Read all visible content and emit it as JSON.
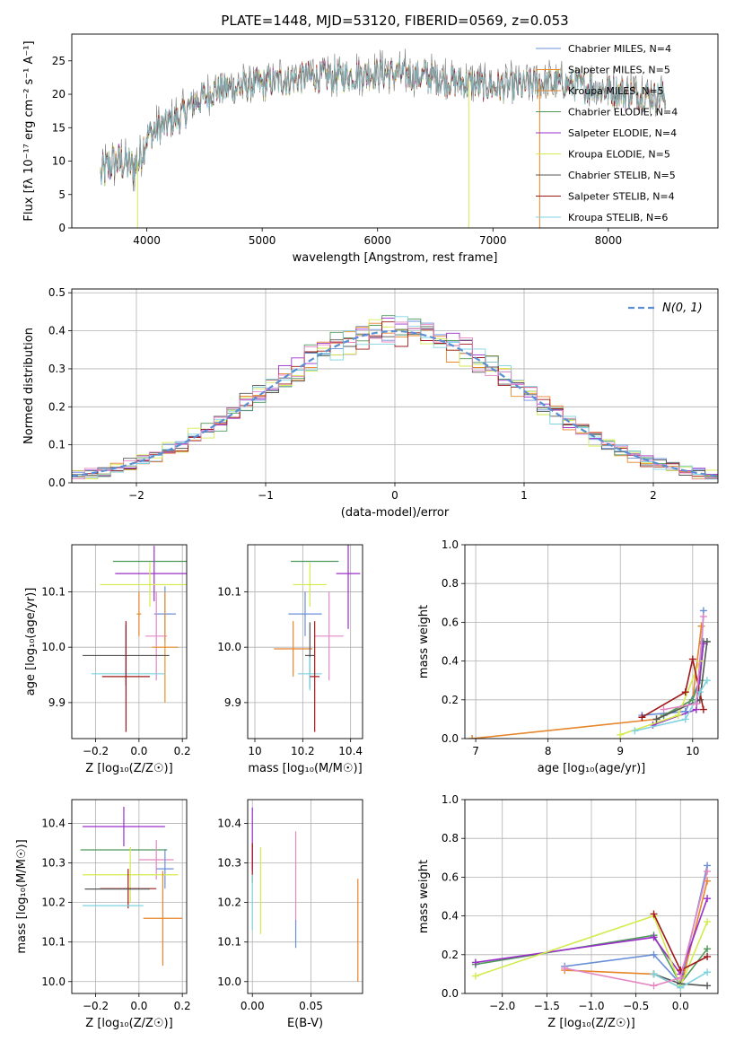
{
  "figure": {
    "title": "PLATE=1448, MJD=53120, FIBERID=0569, z=0.053",
    "palette": [
      "#6a8fd8",
      "#e8902e",
      "#e6852a",
      "#4f9a5a",
      "#9a2fc9",
      "#d4ea4e",
      "#555555",
      "#a01818",
      "#7fd3e0",
      "#e488c4"
    ]
  },
  "chart_data": [
    {
      "id": "spectrum",
      "type": "line",
      "xlabel": "wavelength [Angstrom, rest frame]",
      "ylabel": "Flux [fλ 10⁻¹⁷ erg cm⁻² s⁻¹ A⁻¹]",
      "xlim": [
        3350,
        8950
      ],
      "ylim": [
        0,
        29
      ],
      "xticks": [
        4000,
        5000,
        6000,
        7000,
        8000
      ],
      "yticks": [
        0,
        5,
        10,
        15,
        20,
        25
      ],
      "grid": false,
      "legend_position": "top-right",
      "continuum": {
        "x": [
          3600,
          3700,
          3800,
          3900,
          4000,
          4100,
          4200,
          4300,
          4400,
          4500,
          4600,
          4800,
          5000,
          5200,
          5400,
          5600,
          5800,
          6000,
          6200,
          6400,
          6600,
          6800,
          7000,
          7200,
          7400,
          7600,
          7800,
          8000,
          8200,
          8400,
          8500
        ],
        "y": [
          8,
          10,
          10,
          9,
          14,
          15,
          16,
          17,
          19,
          20,
          21,
          21.5,
          22,
          22.5,
          23,
          23,
          23.3,
          23.5,
          23.5,
          23,
          22.5,
          22,
          21.5,
          21.5,
          22,
          22,
          21.5,
          21,
          20.5,
          20,
          20
        ]
      },
      "series": [
        {
          "name": "Chabrier MILES, N_SSP=4",
          "color": "#6a8fd8"
        },
        {
          "name": "Salpeter MILES, N_SSP=5",
          "color": "#e8902e"
        },
        {
          "name": "Kroupa MILES, N_SSP=5",
          "color": "#e6852a"
        },
        {
          "name": "Chabrier ELODIE, N_SSP=4",
          "color": "#4f9a5a"
        },
        {
          "name": "Salpeter ELODIE, N_SSP=4",
          "color": "#9a2fc9"
        },
        {
          "name": "Kroupa ELODIE, N_SSP=5",
          "color": "#d4ea4e"
        },
        {
          "name": "Chabrier STELIB, N_SSP=5",
          "color": "#555555"
        },
        {
          "name": "Salpeter STELIB, N_SSP=4",
          "color": "#a01818"
        },
        {
          "name": "Kroupa STELIB, N_SSP=6",
          "color": "#7fd3e0"
        }
      ]
    },
    {
      "id": "residuals",
      "type": "bar",
      "xlabel": "(data-model)/error",
      "ylabel": "Normed distribution",
      "xlim": [
        -2.5,
        2.5
      ],
      "ylim": [
        0,
        0.51
      ],
      "xticks": [
        -2,
        -1,
        0,
        1,
        2
      ],
      "yticks": [
        0.0,
        0.1,
        0.2,
        0.3,
        0.4,
        0.5
      ],
      "grid": true,
      "legend_position": "top-right",
      "gaussian_label": "N(0, 1)",
      "bin_width": 0.1,
      "bin_start": -2.5
    },
    {
      "id": "age-vs-z",
      "type": "scatter",
      "xlabel": "Z [log₁₀(Z/Z☉)]",
      "ylabel": "age  [log₁₀(age/yr)]",
      "xlim": [
        -0.31,
        0.22
      ],
      "ylim": [
        9.835,
        10.185
      ],
      "xticks": [
        -0.2,
        0.0,
        0.2
      ],
      "xticklabels": [
        "−0.2",
        "0.0",
        "0.2"
      ],
      "yticks": [
        9.9,
        10.0,
        10.1
      ],
      "grid": true,
      "errorbars": [
        {
          "x": 0.07,
          "y": 10.155,
          "xerr": 0.19,
          "yerr": 0.0,
          "color": "#4f9a5a"
        },
        {
          "x": 0.07,
          "y": 10.133,
          "xerr": 0.18,
          "yerr": 0.05,
          "color": "#9a2fc9"
        },
        {
          "x": 0.05,
          "y": 10.113,
          "xerr": 0.23,
          "yerr": 0.04,
          "color": "#d4ea4e"
        },
        {
          "x": 0.0,
          "y": 10.06,
          "xerr": 0.01,
          "yerr": 0.04,
          "color": "#e6852a"
        },
        {
          "x": 0.12,
          "y": 10.06,
          "xerr": 0.05,
          "yerr": 0.05,
          "color": "#6a8fd8"
        },
        {
          "x": 0.08,
          "y": 10.02,
          "xerr": 0.05,
          "yerr": 0.08,
          "color": "#e488c4"
        },
        {
          "x": 0.12,
          "y": 10.0,
          "xerr": 0.06,
          "yerr": 0.1,
          "color": "#e8902e"
        },
        {
          "x": -0.06,
          "y": 9.985,
          "xerr": 0.2,
          "yerr": 0.055,
          "color": "#555555"
        },
        {
          "x": -0.05,
          "y": 9.952,
          "xerr": 0.17,
          "yerr": 0.0,
          "color": "#7fd3e0"
        },
        {
          "x": -0.06,
          "y": 9.947,
          "xerr": 0.11,
          "yerr": 0.1,
          "color": "#a01818"
        }
      ]
    },
    {
      "id": "age-vs-mass",
      "type": "scatter",
      "xlabel": "mass [log₁₀(M/M☉)]",
      "ylabel": "",
      "xlim": [
        9.97,
        10.45
      ],
      "ylim": [
        9.835,
        10.185
      ],
      "xticks": [
        10.0,
        10.2,
        10.4
      ],
      "yticks": [
        9.9,
        10.0,
        10.1
      ],
      "grid": true,
      "errorbars": [
        {
          "x": 10.25,
          "y": 10.155,
          "xerr": 0.1,
          "yerr": 0.0,
          "color": "#4f9a5a"
        },
        {
          "x": 10.39,
          "y": 10.133,
          "xerr": 0.05,
          "yerr": 0.1,
          "color": "#9a2fc9"
        },
        {
          "x": 10.23,
          "y": 10.113,
          "xerr": 0.07,
          "yerr": 0.04,
          "color": "#d4ea4e"
        },
        {
          "x": 10.21,
          "y": 10.06,
          "xerr": 0.07,
          "yerr": 0.04,
          "color": "#6a8fd8"
        },
        {
          "x": 10.31,
          "y": 10.02,
          "xerr": 0.06,
          "yerr": 0.08,
          "color": "#e488c4"
        },
        {
          "x": 10.16,
          "y": 9.997,
          "xerr": 0.08,
          "yerr": 0.05,
          "color": "#e6852a"
        },
        {
          "x": 10.23,
          "y": 9.985,
          "xerr": 0.02,
          "yerr": 0.06,
          "color": "#555555"
        },
        {
          "x": 10.23,
          "y": 9.952,
          "xerr": 0.05,
          "yerr": 0.03,
          "color": "#7fd3e0"
        },
        {
          "x": 10.25,
          "y": 9.947,
          "xerr": 0.02,
          "yerr": 0.1,
          "color": "#a01818"
        }
      ]
    },
    {
      "id": "mass-weight-vs-age",
      "type": "line",
      "xlabel": "age  [log₁₀(age/yr)]",
      "ylabel": "mass weight",
      "xlim": [
        6.85,
        10.35
      ],
      "ylim": [
        0,
        1.0
      ],
      "xticks": [
        7,
        8,
        9,
        10
      ],
      "yticks": [
        0.0,
        0.2,
        0.4,
        0.6,
        0.8,
        1.0
      ],
      "grid": true,
      "series": [
        {
          "color": "#6a8fd8",
          "points": [
            [
              9.3,
              0.12
            ],
            [
              9.9,
              0.14
            ],
            [
              10.1,
              0.3
            ],
            [
              10.15,
              0.66
            ]
          ]
        },
        {
          "color": "#e6852a",
          "points": [
            [
              6.95,
              0.0
            ],
            [
              9.5,
              0.1
            ],
            [
              10.0,
              0.2
            ],
            [
              10.12,
              0.58
            ]
          ]
        },
        {
          "color": "#4f9a5a",
          "points": [
            [
              9.6,
              0.12
            ],
            [
              10.0,
              0.2
            ],
            [
              10.1,
              0.3
            ],
            [
              10.15,
              0.5
            ]
          ]
        },
        {
          "color": "#9a2fc9",
          "points": [
            [
              9.45,
              0.07
            ],
            [
              10.05,
              0.15
            ],
            [
              10.15,
              0.49
            ]
          ]
        },
        {
          "color": "#d4ea4e",
          "points": [
            [
              9.0,
              0.02
            ],
            [
              9.8,
              0.12
            ],
            [
              10.1,
              0.4
            ]
          ]
        },
        {
          "color": "#555555",
          "points": [
            [
              9.5,
              0.1
            ],
            [
              10.1,
              0.2
            ],
            [
              10.2,
              0.5
            ]
          ]
        },
        {
          "color": "#a01818",
          "points": [
            [
              9.3,
              0.11
            ],
            [
              9.9,
              0.24
            ],
            [
              10.0,
              0.41
            ],
            [
              10.15,
              0.15
            ]
          ]
        },
        {
          "color": "#7fd3e0",
          "points": [
            [
              9.2,
              0.04
            ],
            [
              9.9,
              0.1
            ],
            [
              10.1,
              0.24
            ],
            [
              10.2,
              0.3
            ]
          ]
        },
        {
          "color": "#e488c4",
          "points": [
            [
              9.6,
              0.15
            ],
            [
              10.05,
              0.18
            ],
            [
              10.15,
              0.63
            ]
          ]
        }
      ]
    },
    {
      "id": "mass-vs-z",
      "type": "scatter",
      "xlabel": "Z [log₁₀(Z/Z☉)]",
      "ylabel": "mass [log₁₀(M/M☉)]",
      "xlim": [
        -0.31,
        0.22
      ],
      "ylim": [
        9.97,
        10.46
      ],
      "xticks": [
        -0.2,
        0.0,
        0.2
      ],
      "xticklabels": [
        "−0.2",
        "0.0",
        "0.2"
      ],
      "yticks": [
        10.0,
        10.1,
        10.2,
        10.3,
        10.4
      ],
      "grid": true,
      "errorbars": [
        {
          "x": -0.07,
          "y": 10.392,
          "xerr": 0.19,
          "yerr": 0.05,
          "color": "#9a2fc9"
        },
        {
          "x": -0.07,
          "y": 10.333,
          "xerr": 0.2,
          "yerr": 0.0,
          "color": "#4f9a5a"
        },
        {
          "x": 0.08,
          "y": 10.308,
          "xerr": 0.08,
          "yerr": 0.05,
          "color": "#e488c4"
        },
        {
          "x": 0.12,
          "y": 10.285,
          "xerr": 0.04,
          "yerr": 0.05,
          "color": "#6a8fd8"
        },
        {
          "x": -0.04,
          "y": 10.27,
          "xerr": 0.22,
          "yerr": 0.07,
          "color": "#d4ea4e"
        },
        {
          "x": -0.05,
          "y": 10.235,
          "xerr": 0.13,
          "yerr": 0.05,
          "color": "#a01818"
        },
        {
          "x": -0.1,
          "y": 10.234,
          "xerr": 0.15,
          "yerr": 0.0,
          "color": "#555555"
        },
        {
          "x": -0.12,
          "y": 10.192,
          "xerr": 0.14,
          "yerr": 0.0,
          "color": "#7fd3e0"
        },
        {
          "x": 0.11,
          "y": 10.16,
          "xerr": 0.09,
          "yerr": 0.12,
          "color": "#e6852a"
        }
      ]
    },
    {
      "id": "mass-vs-ebv",
      "type": "scatter",
      "xlabel": "E(B-V)",
      "ylabel": "",
      "xlim": [
        -0.004,
        0.094
      ],
      "ylim": [
        9.97,
        10.46
      ],
      "xticks": [
        0.0,
        0.05
      ],
      "xticklabels": [
        "0.00",
        "0.05"
      ],
      "yticks": [
        10.0,
        10.1,
        10.2,
        10.3,
        10.4
      ],
      "grid": true,
      "errorbars": [
        {
          "x": 0.0,
          "y": 10.36,
          "xerr": 0.0,
          "yerr": 0.08,
          "color": "#9a2fc9"
        },
        {
          "x": 0.0,
          "y": 10.3,
          "xerr": 0.0,
          "yerr": 0.05,
          "color": "#a01818"
        },
        {
          "x": 0.0,
          "y": 10.2,
          "xerr": 0.0,
          "yerr": 0.07,
          "color": "#7fd3e0"
        },
        {
          "x": 0.007,
          "y": 10.23,
          "xerr": 0.0,
          "yerr": 0.11,
          "color": "#d4ea4e"
        },
        {
          "x": 0.037,
          "y": 10.265,
          "xerr": 0.0,
          "yerr": 0.115,
          "color": "#e488c4"
        },
        {
          "x": 0.037,
          "y": 10.12,
          "xerr": 0.0,
          "yerr": 0.035,
          "color": "#6a8fd8"
        },
        {
          "x": 0.09,
          "y": 10.13,
          "xerr": 0.0,
          "yerr": 0.13,
          "color": "#e6852a"
        }
      ]
    },
    {
      "id": "mass-weight-vs-z",
      "type": "line",
      "xlabel": "Z [log₁₀(Z/Z☉)]",
      "ylabel": "mass weight",
      "xlim": [
        -2.42,
        0.42
      ],
      "ylim": [
        0,
        1.0
      ],
      "xticks": [
        -2.0,
        -1.5,
        -1.0,
        -0.5,
        0.0
      ],
      "xticklabels": [
        "−2.0",
        "−1.5",
        "−1.0",
        "−0.5",
        "0.0"
      ],
      "yticks": [
        0.0,
        0.2,
        0.4,
        0.6,
        0.8,
        1.0
      ],
      "grid": true,
      "series": [
        {
          "color": "#6a8fd8",
          "points": [
            [
              -1.3,
              0.14
            ],
            [
              -0.3,
              0.2
            ],
            [
              0.0,
              0.05
            ],
            [
              0.3,
              0.66
            ]
          ]
        },
        {
          "color": "#e6852a",
          "points": [
            [
              -1.3,
              0.12
            ],
            [
              -0.3,
              0.1
            ],
            [
              0.0,
              0.03
            ],
            [
              0.3,
              0.58
            ]
          ]
        },
        {
          "color": "#4f9a5a",
          "points": [
            [
              -2.3,
              0.15
            ],
            [
              -0.3,
              0.3
            ],
            [
              0.0,
              0.05
            ],
            [
              0.3,
              0.23
            ]
          ]
        },
        {
          "color": "#9a2fc9",
          "points": [
            [
              -2.3,
              0.16
            ],
            [
              -0.3,
              0.29
            ],
            [
              0.0,
              0.1
            ],
            [
              0.3,
              0.49
            ]
          ]
        },
        {
          "color": "#d4ea4e",
          "points": [
            [
              -2.3,
              0.09
            ],
            [
              -0.3,
              0.4
            ],
            [
              0.0,
              0.04
            ],
            [
              0.3,
              0.37
            ]
          ]
        },
        {
          "color": "#555555",
          "points": [
            [
              -0.3,
              0.1
            ],
            [
              0.0,
              0.05
            ],
            [
              0.3,
              0.04
            ]
          ]
        },
        {
          "color": "#a01818",
          "points": [
            [
              -0.3,
              0.41
            ],
            [
              0.0,
              0.12
            ],
            [
              0.3,
              0.19
            ]
          ]
        },
        {
          "color": "#7fd3e0",
          "points": [
            [
              -0.3,
              0.1
            ],
            [
              0.0,
              0.03
            ],
            [
              0.3,
              0.11
            ]
          ]
        },
        {
          "color": "#e488c4",
          "points": [
            [
              -1.3,
              0.13
            ],
            [
              -0.3,
              0.04
            ],
            [
              0.0,
              0.08
            ],
            [
              0.3,
              0.63
            ]
          ]
        }
      ]
    }
  ]
}
